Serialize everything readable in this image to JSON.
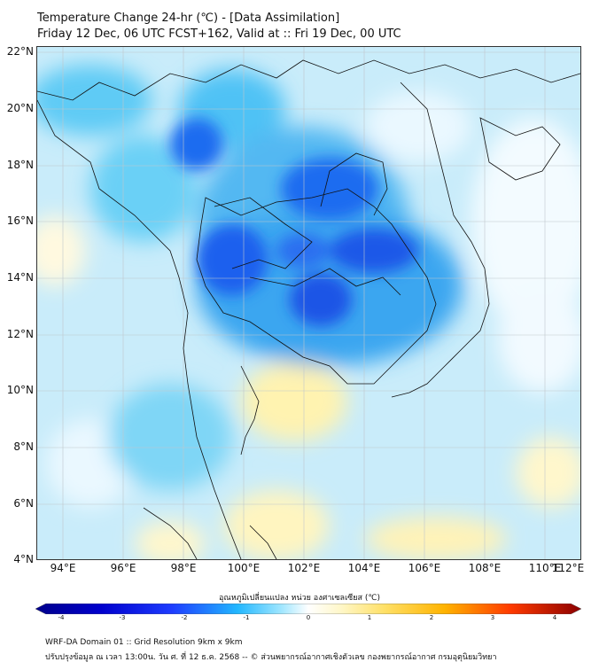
{
  "title_line1": "Temperature Change 24-hr (℃) - [Data Assimilation]",
  "title_line2": "Friday 12 Dec, 06 UTC FCST+162, Valid at :: Fri 19 Dec, 00 UTC",
  "map": {
    "lat_labels": [
      "22°N",
      "20°N",
      "18°N",
      "16°N",
      "14°N",
      "12°N",
      "10°N",
      "8°N",
      "6°N",
      "4°N"
    ],
    "lon_labels": [
      "94°E",
      "96°E",
      "98°E",
      "100°E",
      "102°E",
      "104°E",
      "106°E",
      "108°E",
      "110°E",
      "112°E"
    ]
  },
  "colorbar": {
    "label": "อุณหภูมิเปลี่ยนแปลง หน่วย องศาเซลเซียส (℃)",
    "ticks": [
      "-4",
      "-3",
      "-2",
      "-1",
      "0",
      "1",
      "2",
      "3",
      "4"
    ],
    "colors": [
      "#00008b",
      "#0000cd",
      "#1e3cff",
      "#1e7bff",
      "#22b7ff",
      "#7fdcff",
      "#dff6ff",
      "#ffffff",
      "#fff7c8",
      "#ffe066",
      "#ffb300",
      "#ff6a00",
      "#e60000",
      "#8b0000"
    ]
  },
  "footer_line1": "WRF-DA Domain 01 :: Grid Resolution 9km x 9km",
  "footer_line2": "ปรับปรุงข้อมูล ณ เวลา 13:00น. วัน ศ. ที่ 12 ธ.ค. 2568 -- © ส่วนพยากรณ์อากาศเชิงตัวเลข กองพยากรณ์อากาศ กรมอุตุนิยมวิทยา"
}
